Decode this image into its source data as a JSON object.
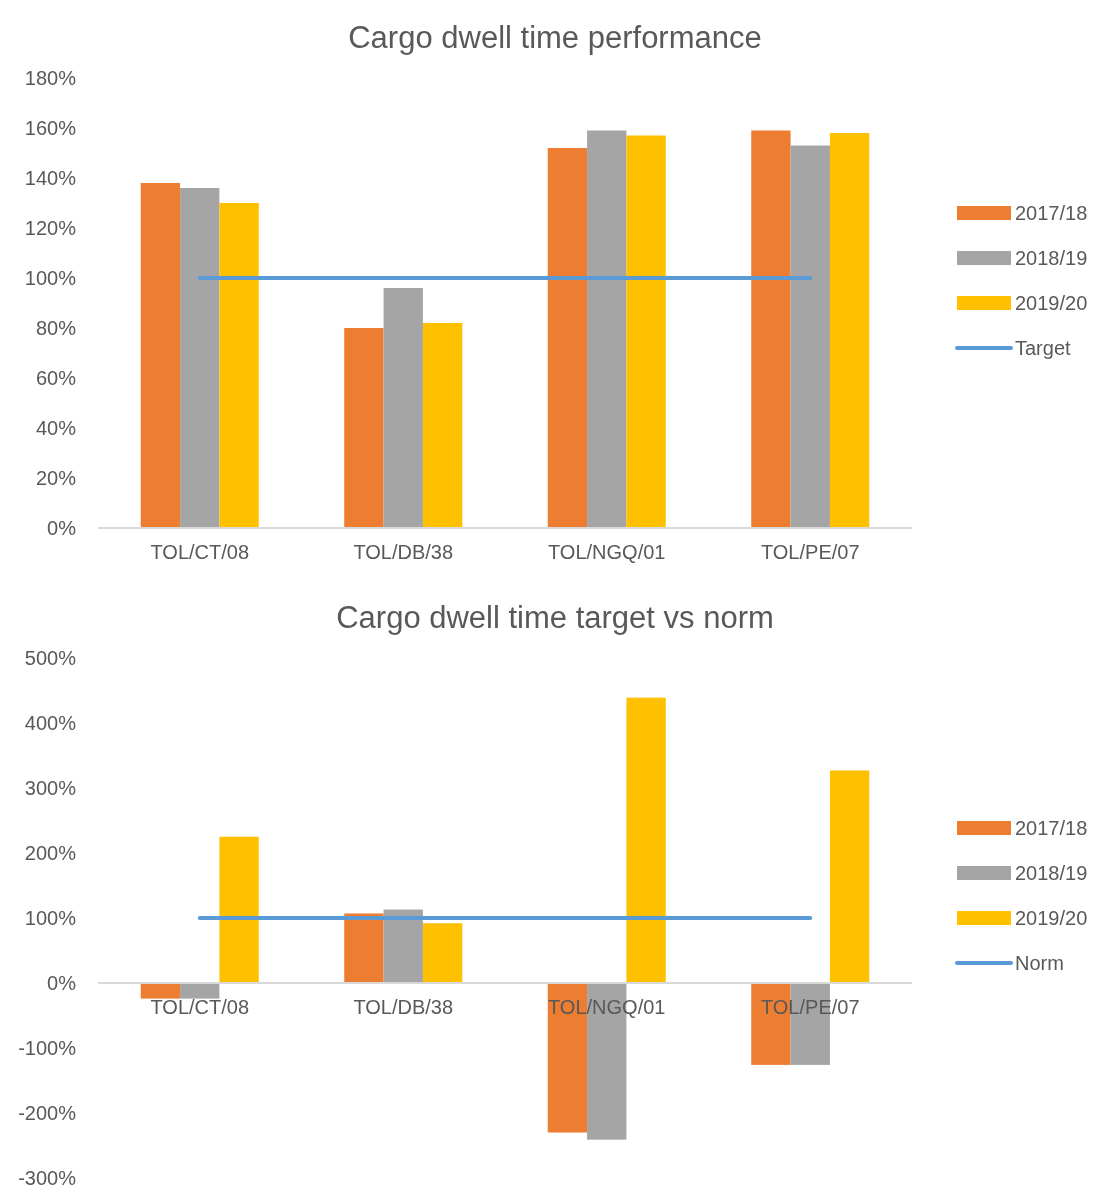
{
  "chart_data": [
    {
      "type": "bar",
      "title": "Cargo dwell time performance",
      "categories": [
        "TOL/CT/08",
        "TOL/DB/38",
        "TOL/NGQ/01",
        "TOL/PE/07"
      ],
      "series": [
        {
          "name": "2017/18",
          "color": "#ed7d31",
          "values": [
            138,
            80,
            152,
            159
          ]
        },
        {
          "name": "2018/19",
          "color": "#a5a5a5",
          "values": [
            136,
            96,
            159,
            153
          ]
        },
        {
          "name": "2019/20",
          "color": "#ffc000",
          "values": [
            130,
            82,
            157,
            158
          ]
        },
        {
          "name": "Target",
          "type": "line",
          "color": "#5b9bd5",
          "values": [
            100,
            100,
            100,
            100
          ]
        }
      ],
      "ylim": [
        0,
        180
      ],
      "yticks": [
        {
          "value": 0,
          "label": "0%"
        },
        {
          "value": 20,
          "label": "20%"
        },
        {
          "value": 40,
          "label": "40%"
        },
        {
          "value": 60,
          "label": "60%"
        },
        {
          "value": 80,
          "label": "80%"
        },
        {
          "value": 100,
          "label": "100%"
        },
        {
          "value": 120,
          "label": "120%"
        },
        {
          "value": 140,
          "label": "140%"
        },
        {
          "value": 160,
          "label": "160%"
        },
        {
          "value": 180,
          "label": "180%"
        }
      ],
      "legend": "right"
    },
    {
      "type": "bar",
      "title": "Cargo dwell time target vs norm",
      "categories": [
        "TOL/CT/08",
        "TOL/DB/38",
        "TOL/NGQ/01",
        "TOL/PE/07"
      ],
      "series": [
        {
          "name": "2017/18",
          "color": "#ed7d31",
          "values": [
            -24,
            107,
            -230,
            -126
          ]
        },
        {
          "name": "2018/19",
          "color": "#a5a5a5",
          "values": [
            -24,
            113,
            -241,
            -126
          ]
        },
        {
          "name": "2019/20",
          "color": "#ffc000",
          "values": [
            225,
            92,
            439,
            327
          ]
        },
        {
          "name": "Norm",
          "type": "line",
          "color": "#5b9bd5",
          "values": [
            100,
            100,
            100,
            100
          ]
        }
      ],
      "ylim": [
        -300,
        500
      ],
      "yticks": [
        {
          "value": -300,
          "label": "-300%"
        },
        {
          "value": -200,
          "label": "-200%"
        },
        {
          "value": -100,
          "label": "-100%"
        },
        {
          "value": 0,
          "label": "0%"
        },
        {
          "value": 100,
          "label": "100%"
        },
        {
          "value": 200,
          "label": "200%"
        },
        {
          "value": 300,
          "label": "300%"
        },
        {
          "value": 400,
          "label": "400%"
        },
        {
          "value": 500,
          "label": "500%"
        }
      ],
      "legend": "right"
    }
  ]
}
